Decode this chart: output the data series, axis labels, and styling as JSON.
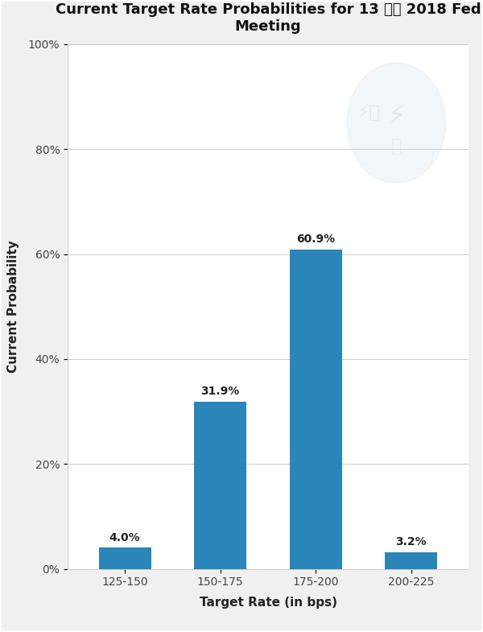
{
  "title": "Current Target Rate Probabilities for 13 六月 2018 Fed\nMeeting",
  "categories": [
    "125-150",
    "150-175",
    "175-200",
    "200-225"
  ],
  "values": [
    4.0,
    31.9,
    60.9,
    3.2
  ],
  "bar_color": "#2a85b8",
  "xlabel": "Target Rate (in bps)",
  "ylabel": "Current Probability",
  "ylim": [
    0,
    100
  ],
  "yticks": [
    0,
    20,
    40,
    60,
    80,
    100
  ],
  "ytick_labels": [
    "0%",
    "20%",
    "40%",
    "60%",
    "80%",
    "100%"
  ],
  "title_fontsize": 13,
  "label_fontsize": 11,
  "tick_fontsize": 10,
  "bar_label_fontsize": 10,
  "bg_color": "#f0f0f0",
  "plot_bg_color": "#ffffff",
  "border_color": "#bbbbbb"
}
